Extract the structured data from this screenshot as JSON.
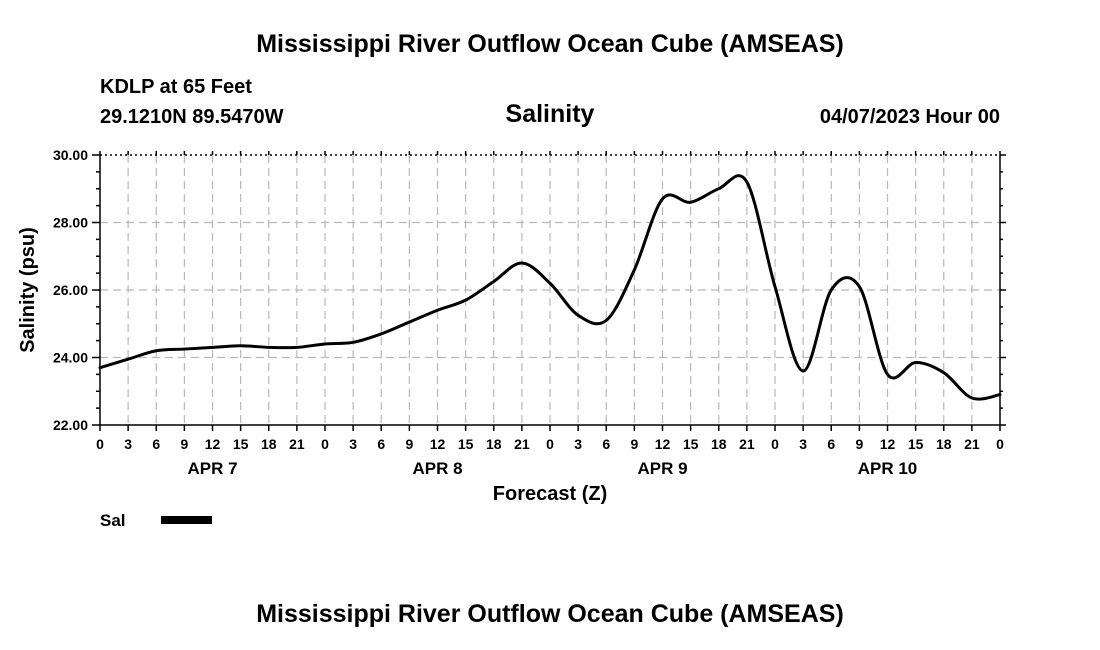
{
  "page": {
    "title": "Mississippi River Outflow Ocean Cube (AMSEAS)",
    "footer_title": "Mississippi River Outflow Ocean Cube (AMSEAS)",
    "station": "KDLP at 65 Feet",
    "coordinates": "29.1210N  89.5470W",
    "variable": "Salinity",
    "datetime": "04/07/2023 Hour 00"
  },
  "chart_data": {
    "type": "line",
    "title": "Salinity",
    "xlabel": "Forecast (Z)",
    "ylabel": "Salinity (psu)",
    "xlim": [
      0,
      96
    ],
    "ylim": [
      22,
      30
    ],
    "yticks": [
      22,
      24,
      26,
      28,
      30
    ],
    "ytick_labels": [
      "22.00",
      "24.00",
      "26.00",
      "28.00",
      "30.00"
    ],
    "xtick_labels": [
      "0",
      "3",
      "6",
      "9",
      "12",
      "15",
      "18",
      "21",
      "0",
      "3",
      "6",
      "9",
      "12",
      "15",
      "18",
      "21",
      "0",
      "3",
      "6",
      "9",
      "12",
      "15",
      "18",
      "21",
      "0",
      "3",
      "6",
      "9",
      "12",
      "15",
      "18",
      "21",
      "0"
    ],
    "day_labels": [
      {
        "label": "APR 7",
        "hour": 12
      },
      {
        "label": "APR 8",
        "hour": 36
      },
      {
        "label": "APR 9",
        "hour": 60
      },
      {
        "label": "APR 10",
        "hour": 84
      }
    ],
    "grid": true,
    "legend": [
      {
        "label": "Sal",
        "color": "#000000"
      }
    ],
    "series": [
      {
        "name": "Sal",
        "color": "#000000",
        "x": [
          0,
          3,
          6,
          9,
          12,
          15,
          18,
          21,
          24,
          27,
          30,
          33,
          36,
          39,
          42,
          45,
          48,
          51,
          54,
          57,
          60,
          63,
          66,
          69,
          72,
          75,
          78,
          81,
          84,
          87,
          90,
          93,
          96
        ],
        "values": [
          23.7,
          23.95,
          24.2,
          24.25,
          24.3,
          24.35,
          24.3,
          24.3,
          24.4,
          24.45,
          24.7,
          25.05,
          25.4,
          25.7,
          26.25,
          26.8,
          26.2,
          25.25,
          25.1,
          26.6,
          28.7,
          28.6,
          29.0,
          29.2,
          26.1,
          23.6,
          26.0,
          26.1,
          23.5,
          23.85,
          23.55,
          22.8,
          22.9
        ]
      }
    ]
  }
}
